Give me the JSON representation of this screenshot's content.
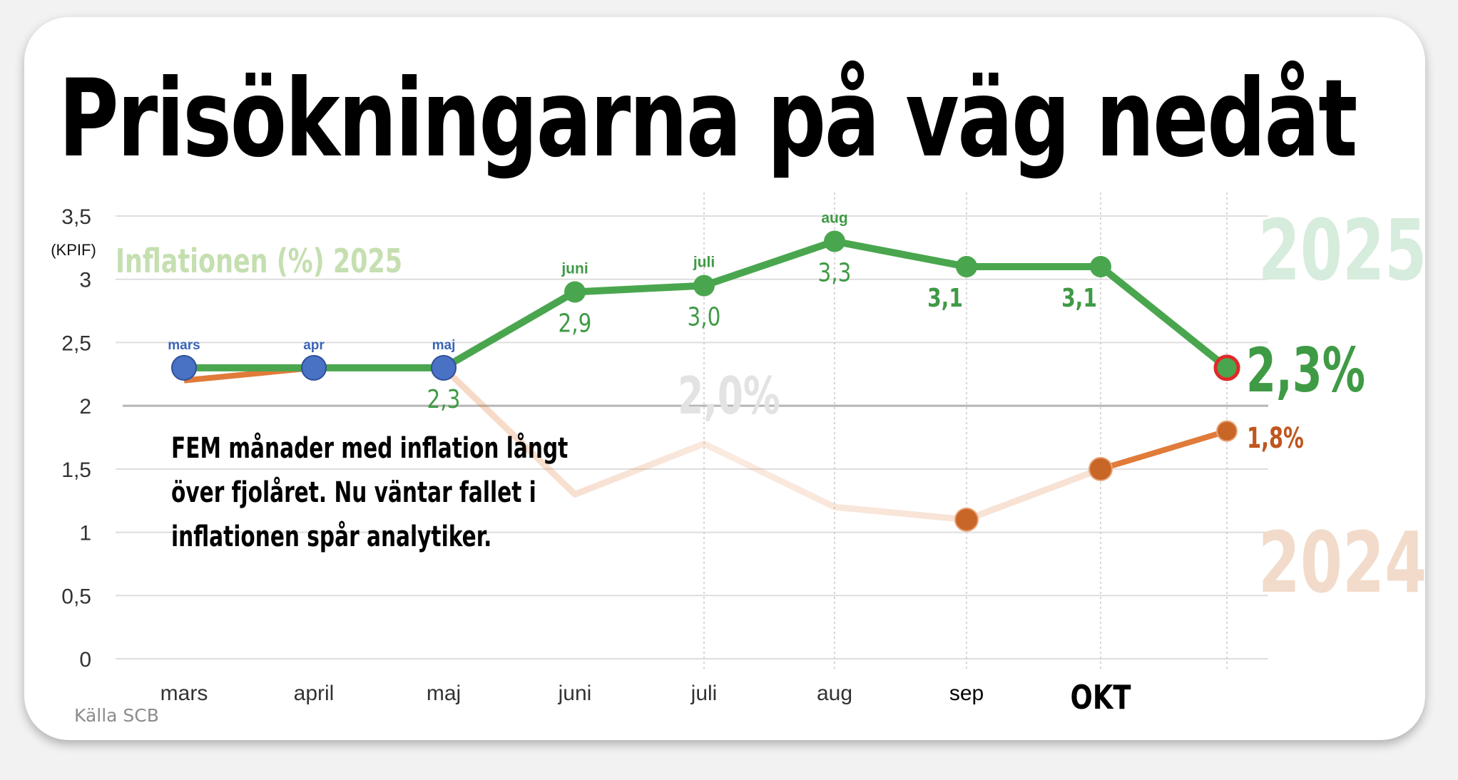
{
  "card": {
    "background": "#ffffff"
  },
  "headline": "Prisökningarna på väg nedåt",
  "note_lines": [
    "FEM månader med inflation långt",
    "över fjolåret. Nu väntar fallet i",
    "inflationen spår analytiker."
  ],
  "source": "Källa SCB",
  "chart_data": {
    "type": "line",
    "unit_label": "(KPIF)",
    "inner_title": "Inflationen (%) 2025",
    "categories": [
      "mars",
      "april",
      "maj",
      "juni",
      "juli",
      "aug",
      "sep",
      "OKT",
      ""
    ],
    "y_ticks": [
      "0",
      "0,5",
      "1",
      "1,5",
      "2",
      "2,5",
      "3",
      "3,5"
    ],
    "ylim": [
      0,
      3.5
    ],
    "grid": true,
    "target_label": "2,0%",
    "series": [
      {
        "name": "2025",
        "color": "#4aa64e",
        "values": [
          2.3,
          2.3,
          2.3,
          2.9,
          2.95,
          3.3,
          3.1,
          3.1,
          2.3
        ],
        "point_labels_above": [
          "mars",
          "apr",
          "maj",
          "juni",
          "juli",
          "aug",
          "",
          "",
          ""
        ],
        "point_labels_below": [
          "",
          "",
          "2,3",
          "2,9",
          "3,0",
          "3,3",
          "3,1",
          "3,1",
          ""
        ],
        "end_label": "2,3%"
      },
      {
        "name": "2024",
        "color": "#e07b39",
        "values": [
          2.2,
          2.3,
          2.3,
          1.3,
          1.7,
          1.2,
          1.1,
          1.5,
          1.8
        ],
        "end_label": "1,8%"
      }
    ]
  }
}
